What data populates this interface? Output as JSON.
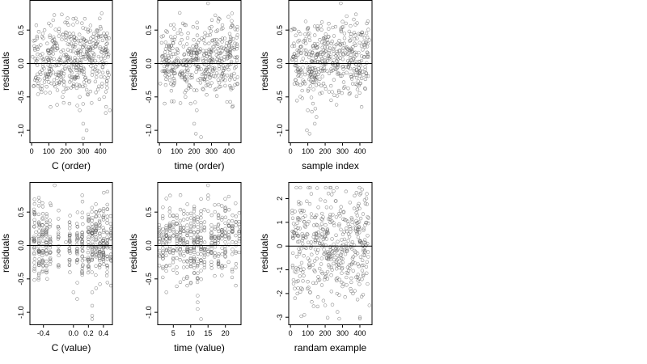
{
  "chart_data": [
    {
      "type": "scatter",
      "xlabel": "C (order)",
      "ylabel": "residuals",
      "xlim": [
        -10,
        470
      ],
      "ylim": [
        -1.18,
        0.95
      ],
      "xticks": [
        0,
        100,
        200,
        300,
        400
      ],
      "xtick_labels": [
        "0",
        "100",
        "200",
        "300",
        "400"
      ],
      "yticks": [
        -1.0,
        -0.5,
        0.0,
        0.5
      ],
      "ytick_labels": [
        "-1.0",
        "-0.5",
        "0.0",
        "0.5"
      ],
      "hline": 0,
      "grid": false,
      "n_points": 460,
      "series": [
        {
          "x": [
            5,
            40,
            60,
            75,
            90,
            100,
            110,
            140,
            160,
            180,
            200,
            220,
            240,
            260,
            280,
            300,
            320,
            340,
            360,
            380,
            400,
            420,
            440,
            455,
            150,
            210,
            250,
            280,
            300,
            350,
            410,
            100,
            170,
            230,
            290,
            330,
            390,
            445,
            60,
            120,
            180,
            250,
            310,
            370,
            430,
            80,
            140,
            200,
            260,
            320,
            380,
            440,
            20,
            90,
            160,
            230,
            300,
            360,
            420
          ],
          "y": [
            0.1,
            -0.3,
            0.4,
            0.5,
            0.3,
            0.6,
            -0.65,
            0.2,
            -0.3,
            -0.5,
            0.35,
            -0.6,
            0.25,
            -0.1,
            -0.7,
            -0.9,
            -1.0,
            0.2,
            0.3,
            0.5,
            0.55,
            0.45,
            0.3,
            -0.7,
            -0.4,
            0.1,
            -0.2,
            -0.5,
            -1.12,
            0.05,
            -0.3,
            0.15,
            -0.2,
            0.3,
            -0.1,
            0.2,
            0.4,
            0.1,
            -0.1,
            0.2,
            -0.1,
            0.35,
            0.1,
            0.25,
            0.2,
            -0.15,
            0.3,
            0.1,
            -0.05,
            0.15,
            0.3,
            0.45,
            0.2,
            -0.2,
            0.05,
            -0.25,
            0.1,
            0.35,
            0.0
          ]
        }
      ]
    },
    {
      "type": "scatter",
      "xlabel": "time (order)",
      "ylabel": "residuals",
      "xlim": [
        -10,
        470
      ],
      "ylim": [
        -1.18,
        0.95
      ],
      "xticks": [
        0,
        100,
        200,
        300,
        400
      ],
      "xtick_labels": [
        "0",
        "100",
        "200",
        "300",
        "400"
      ],
      "yticks": [
        -1.0,
        -0.5,
        0.0,
        0.5
      ],
      "ytick_labels": [
        "-1.0",
        "-0.5",
        "0.0",
        "0.5"
      ],
      "hline": 0,
      "grid": false,
      "n_points": 460,
      "series": [
        {
          "x": [
            5,
            30,
            60,
            90,
            120,
            150,
            180,
            200,
            210,
            230,
            260,
            280,
            300,
            330,
            360,
            390,
            420,
            450,
            15,
            45,
            75,
            105,
            135,
            165,
            195,
            225,
            255,
            285,
            315,
            345,
            375,
            405,
            435,
            200,
            215,
            240,
            270
          ],
          "y": [
            -0.3,
            -0.6,
            0.2,
            0.4,
            0.5,
            -0.5,
            -0.6,
            -0.9,
            -1.05,
            0.35,
            0.4,
            0.9,
            0.55,
            0.3,
            -0.25,
            0.1,
            -0.65,
            -0.3,
            0.1,
            -0.2,
            0.35,
            0.2,
            0.6,
            -0.1,
            0.05,
            0.2,
            -0.15,
            0.3,
            0.25,
            -0.35,
            0.1,
            0.2,
            0.3,
            -0.4,
            -0.7,
            -1.1,
            0.15
          ]
        }
      ]
    },
    {
      "type": "scatter",
      "xlabel": "sample index",
      "ylabel": "residuals",
      "xlim": [
        -10,
        470
      ],
      "ylim": [
        -1.18,
        0.95
      ],
      "xticks": [
        0,
        100,
        200,
        300,
        400
      ],
      "xtick_labels": [
        "0",
        "100",
        "200",
        "300",
        "400"
      ],
      "yticks": [
        -1.0,
        -0.5,
        0.0,
        0.5
      ],
      "ytick_labels": [
        "-1.0",
        "-0.5",
        "0.0",
        "0.5"
      ],
      "hline": 0,
      "grid": false,
      "n_points": 460,
      "series": [
        {
          "x": [
            5,
            40,
            70,
            95,
            110,
            130,
            150,
            170,
            200,
            230,
            260,
            290,
            320,
            350,
            380,
            410,
            440,
            455,
            20,
            60,
            85,
            120,
            160,
            190,
            220,
            250,
            280,
            310,
            340,
            370,
            400,
            430,
            100,
            140,
            175,
            300
          ],
          "y": [
            0.5,
            0.2,
            -0.3,
            -1.0,
            -1.05,
            -0.6,
            -0.8,
            -0.45,
            0.3,
            0.1,
            0.55,
            0.9,
            0.6,
            -0.2,
            -0.1,
            -0.65,
            0.6,
            0.35,
            0.3,
            -0.1,
            -0.3,
            -0.2,
            0.15,
            0.2,
            0.4,
            0.05,
            -0.15,
            0.3,
            0.2,
            0.1,
            -0.3,
            0.25,
            -0.7,
            -0.9,
            0.1,
            -0.05
          ]
        }
      ]
    },
    {
      "type": "scatter",
      "xlabel": "C (value)",
      "ylabel": "residuals",
      "xlim": [
        -0.58,
        0.52
      ],
      "ylim": [
        -1.18,
        0.95
      ],
      "xticks": [
        -0.4,
        0.0,
        0.2,
        0.4
      ],
      "xtick_labels": [
        "-0.4",
        "0.0",
        "0.2",
        "0.4"
      ],
      "yticks": [
        -1.0,
        -0.5,
        0.0,
        0.5
      ],
      "ytick_labels": [
        "-1.0",
        "-0.5",
        "0.0",
        "0.5"
      ],
      "hline": 0,
      "grid": false,
      "n_points": 460,
      "series": [
        {
          "x": [
            -0.55,
            -0.5,
            -0.45,
            -0.4,
            -0.35,
            -0.3,
            -0.25,
            -0.2,
            -0.1,
            0.0,
            0.05,
            0.1,
            0.15,
            0.2,
            0.25,
            0.3,
            0.35,
            0.4,
            0.45,
            0.5,
            -0.2,
            0.25,
            0.25,
            0.25,
            0.3,
            -0.35,
            -0.4,
            0.05,
            0.2,
            0.45
          ],
          "y": [
            0.1,
            0.2,
            0.3,
            -0.1,
            -0.5,
            0.6,
            0.9,
            -0.3,
            0.05,
            -0.7,
            -0.8,
            0.1,
            -0.2,
            -0.3,
            -1.1,
            0.5,
            0.35,
            0.2,
            -0.4,
            -0.6,
            0.4,
            -0.7,
            -0.9,
            -1.05,
            0.3,
            0.25,
            -0.3,
            0.15,
            0.05,
            0.2
          ]
        }
      ]
    },
    {
      "type": "scatter",
      "xlabel": "time (value)",
      "ylabel": "residuals",
      "xlim": [
        0.5,
        24.5
      ],
      "ylim": [
        -1.18,
        0.95
      ],
      "xticks": [
        5,
        10,
        15,
        20
      ],
      "xtick_labels": [
        "5",
        "10",
        "15",
        "20"
      ],
      "yticks": [
        -1.0,
        -0.5,
        0.0,
        0.5
      ],
      "ytick_labels": [
        "-1.0",
        "-0.5",
        "0.0",
        "0.5"
      ],
      "hline": 0,
      "grid": false,
      "n_points": 460,
      "series": [
        {
          "x": [
            1,
            2,
            3,
            4,
            5,
            6,
            7,
            8,
            9,
            10,
            11,
            12,
            13,
            14,
            15,
            16,
            17,
            18,
            19,
            20,
            21,
            22,
            23,
            24,
            12,
            12,
            12,
            12,
            11,
            10
          ],
          "y": [
            -0.3,
            -0.1,
            -0.7,
            0.1,
            0.45,
            0.2,
            0.3,
            -0.5,
            -0.6,
            0.2,
            0.55,
            -0.85,
            -1.1,
            0.35,
            0.9,
            0.1,
            0.25,
            -0.25,
            0.1,
            -0.1,
            0.3,
            0.2,
            -0.6,
            0.1,
            -0.95,
            -0.75,
            -0.5,
            0.0,
            0.4,
            -0.2
          ]
        }
      ]
    },
    {
      "type": "scatter",
      "xlabel": "randam example",
      "ylabel": "residuals",
      "xlim": [
        -10,
        470
      ],
      "ylim": [
        -3.3,
        2.7
      ],
      "xticks": [
        0,
        100,
        200,
        300,
        400
      ],
      "xtick_labels": [
        "0",
        "100",
        "200",
        "300",
        "400"
      ],
      "yticks": [
        -3,
        -2,
        -1,
        0,
        1,
        2
      ],
      "ytick_labels": [
        "-3",
        "-2",
        "-1",
        "0",
        "1",
        "2"
      ],
      "hline": 0,
      "grid": false,
      "n_points": 460,
      "series": [
        {
          "x": [
            10,
            40,
            80,
            120,
            160,
            200,
            240,
            280,
            320,
            360,
            400,
            440,
            455,
            30,
            60,
            100,
            140,
            180,
            220,
            260,
            300,
            340,
            380,
            420,
            70,
            110,
            150,
            190,
            230,
            270,
            310,
            350,
            390,
            430
          ],
          "y": [
            1.5,
            -2.0,
            -2.9,
            2.2,
            -1.3,
            -2.5,
            0.3,
            -0.8,
            2.3,
            -2.0,
            -3.0,
            2.2,
            -2.5,
            0.8,
            1.8,
            -1.5,
            1.2,
            0.5,
            -0.3,
            1.9,
            -1.7,
            0.4,
            1.4,
            -1.2,
            0.1,
            -0.6,
            0.9,
            -2.3,
            1.0,
            -0.4,
            0.6,
            -1.9,
            1.7,
            -0.2
          ]
        }
      ]
    }
  ]
}
